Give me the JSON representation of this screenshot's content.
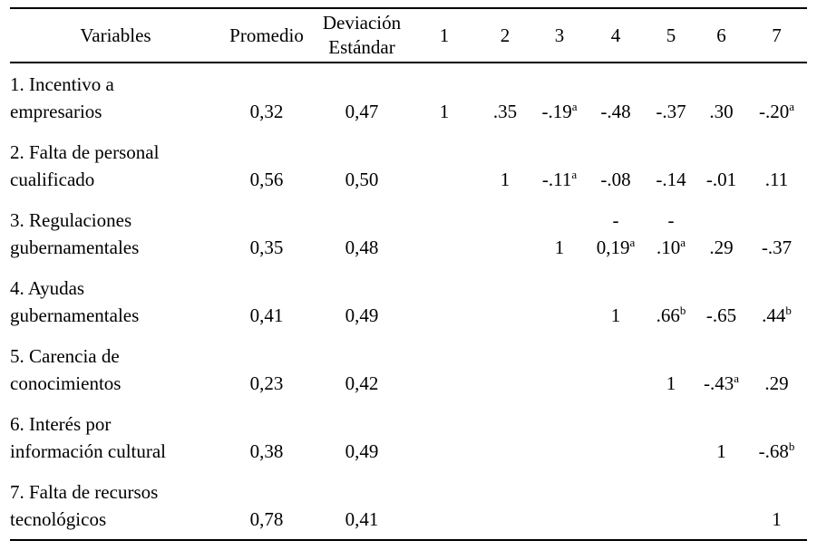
{
  "page": {
    "background_color": "#ffffff",
    "text_color": "#000000"
  },
  "table": {
    "headers": {
      "variables": "Variables",
      "promedio": "Promedio",
      "deviacion": [
        "Deviación",
        "Estándar"
      ],
      "correlation_columns": [
        "1",
        "2",
        "3",
        "4",
        "5",
        "6",
        "7"
      ]
    },
    "rows": [
      {
        "label": [
          "1. Incentivo a",
          "empresarios"
        ],
        "promedio": "0,32",
        "deviacion": "0,47",
        "correlations": [
          "1",
          ".35",
          {
            "text": "-.19",
            "sup": "a"
          },
          "-.48",
          "-.37",
          ".30",
          {
            "text": "-.20",
            "sup": "a"
          }
        ]
      },
      {
        "label": [
          "2. Falta de personal",
          "cualificado"
        ],
        "promedio": "0,56",
        "deviacion": "0,50",
        "correlations": [
          "",
          "1",
          {
            "text": "-.11",
            "sup": "a"
          },
          "-.08",
          "-.14",
          "-.01",
          ".11"
        ]
      },
      {
        "label": [
          "3. Regulaciones",
          "gubernamentales"
        ],
        "promedio": "0,35",
        "deviacion": "0,48",
        "correlations": [
          "",
          "",
          "1",
          {
            "line1": "-",
            "text": "0,19",
            "sup": "a"
          },
          {
            "line1": "-",
            "text": ".10",
            "sup": "a"
          },
          ".29",
          "-.37"
        ]
      },
      {
        "label": [
          "4. Ayudas",
          "gubernamentales"
        ],
        "promedio": "0,41",
        "deviacion": "0,49",
        "correlations": [
          "",
          "",
          "",
          "1",
          {
            "text": ".66",
            "sup": "b"
          },
          "-.65",
          {
            "text": ".44",
            "sup": "b"
          }
        ]
      },
      {
        "label": [
          "5. Carencia de",
          "conocimientos"
        ],
        "promedio": "0,23",
        "deviacion": "0,42",
        "correlations": [
          "",
          "",
          "",
          "",
          "1",
          {
            "text": "-.43",
            "sup": "a"
          },
          ".29"
        ]
      },
      {
        "label": [
          "6. Interés por",
          "información cultural"
        ],
        "promedio": "0,38",
        "deviacion": "0,49",
        "correlations": [
          "",
          "",
          "",
          "",
          "",
          "1",
          {
            "text": "-.68",
            "sup": "b"
          }
        ]
      },
      {
        "label": [
          "7. Falta de recursos",
          "tecnológicos"
        ],
        "promedio": "0,78",
        "deviacion": "0,41",
        "correlations": [
          "",
          "",
          "",
          "",
          "",
          "",
          "1"
        ]
      }
    ]
  }
}
